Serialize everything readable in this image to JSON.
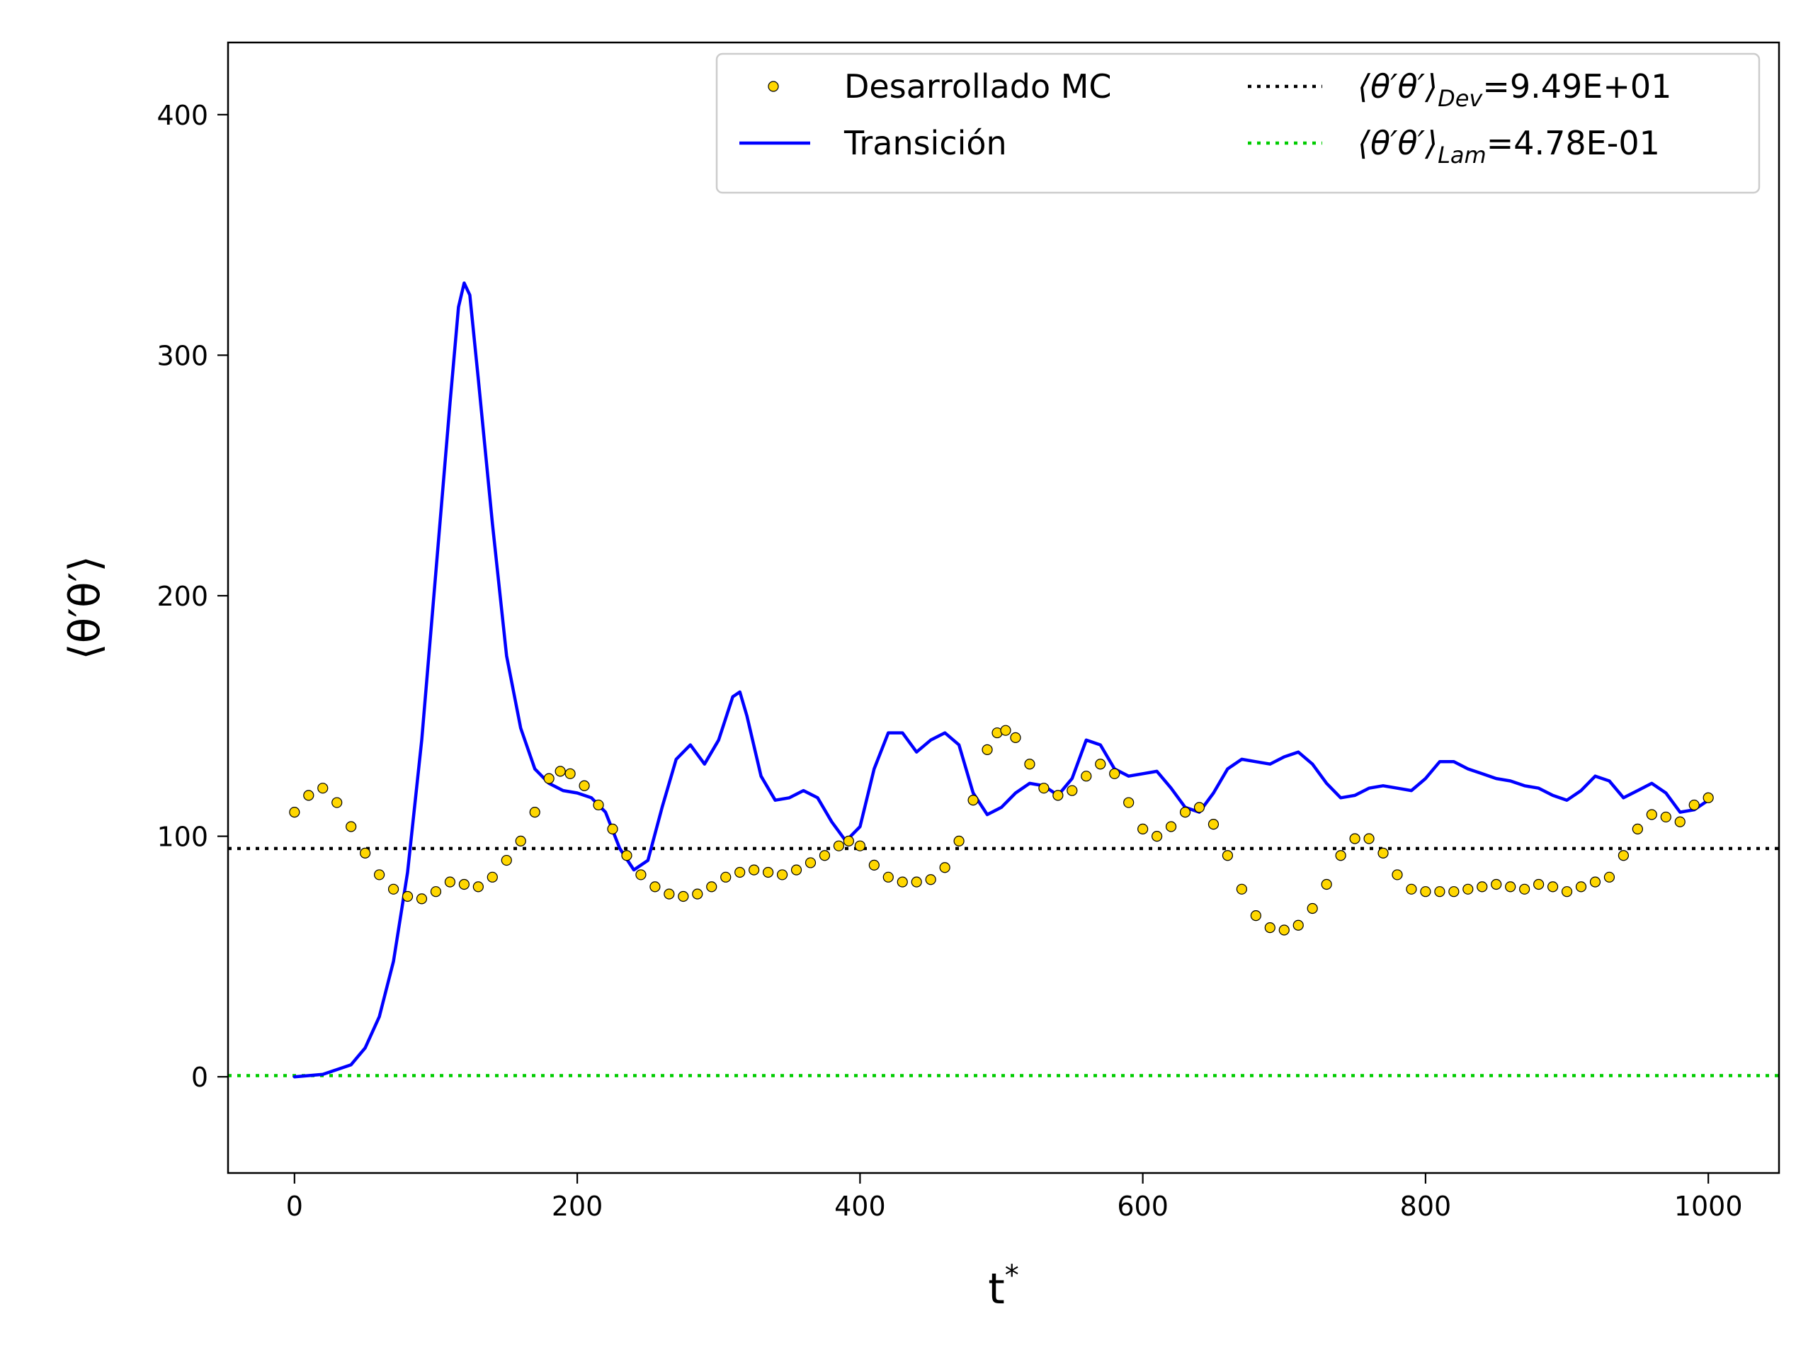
{
  "chart_data": {
    "type": "line",
    "title": "",
    "xlabel": "t*",
    "ylabel": "⟨θ′θ′⟩",
    "xlim": [
      -47,
      1050
    ],
    "ylim": [
      -40,
      430
    ],
    "xticks": [
      0,
      200,
      400,
      600,
      800,
      1000
    ],
    "yticks": [
      0,
      100,
      200,
      300,
      400
    ],
    "grid": false,
    "legend": {
      "placement": "top-right",
      "columns": 2
    },
    "series": [
      {
        "name": "Desarrollado MC",
        "kind": "scatter",
        "color": "#ffd700",
        "edge_color": "#000000",
        "points": [
          [
            0,
            110
          ],
          [
            10,
            117
          ],
          [
            20,
            120
          ],
          [
            30,
            114
          ],
          [
            40,
            104
          ],
          [
            50,
            93
          ],
          [
            60,
            84
          ],
          [
            70,
            78
          ],
          [
            80,
            75
          ],
          [
            90,
            74
          ],
          [
            100,
            77
          ],
          [
            110,
            81
          ],
          [
            120,
            80
          ],
          [
            130,
            79
          ],
          [
            140,
            83
          ],
          [
            150,
            90
          ],
          [
            160,
            98
          ],
          [
            170,
            110
          ],
          [
            180,
            124
          ],
          [
            188,
            127
          ],
          [
            195,
            126
          ],
          [
            205,
            121
          ],
          [
            215,
            113
          ],
          [
            225,
            103
          ],
          [
            235,
            92
          ],
          [
            245,
            84
          ],
          [
            255,
            79
          ],
          [
            265,
            76
          ],
          [
            275,
            75
          ],
          [
            285,
            76
          ],
          [
            295,
            79
          ],
          [
            305,
            83
          ],
          [
            315,
            85
          ],
          [
            325,
            86
          ],
          [
            335,
            85
          ],
          [
            345,
            84
          ],
          [
            355,
            86
          ],
          [
            365,
            89
          ],
          [
            375,
            92
          ],
          [
            385,
            96
          ],
          [
            392,
            98
          ],
          [
            400,
            96
          ],
          [
            410,
            88
          ],
          [
            420,
            83
          ],
          [
            430,
            81
          ],
          [
            440,
            81
          ],
          [
            450,
            82
          ],
          [
            460,
            87
          ],
          [
            470,
            98
          ],
          [
            480,
            115
          ],
          [
            490,
            136
          ],
          [
            497,
            143
          ],
          [
            503,
            144
          ],
          [
            510,
            141
          ],
          [
            520,
            130
          ],
          [
            530,
            120
          ],
          [
            540,
            117
          ],
          [
            550,
            119
          ],
          [
            560,
            125
          ],
          [
            570,
            130
          ],
          [
            580,
            126
          ],
          [
            590,
            114
          ],
          [
            600,
            103
          ],
          [
            610,
            100
          ],
          [
            620,
            104
          ],
          [
            630,
            110
          ],
          [
            640,
            112
          ],
          [
            650,
            105
          ],
          [
            660,
            92
          ],
          [
            670,
            78
          ],
          [
            680,
            67
          ],
          [
            690,
            62
          ],
          [
            700,
            61
          ],
          [
            710,
            63
          ],
          [
            720,
            70
          ],
          [
            730,
            80
          ],
          [
            740,
            92
          ],
          [
            750,
            99
          ],
          [
            760,
            99
          ],
          [
            770,
            93
          ],
          [
            780,
            84
          ],
          [
            790,
            78
          ],
          [
            800,
            77
          ],
          [
            810,
            77
          ],
          [
            820,
            77
          ],
          [
            830,
            78
          ],
          [
            840,
            79
          ],
          [
            850,
            80
          ],
          [
            860,
            79
          ],
          [
            870,
            78
          ],
          [
            880,
            80
          ],
          [
            890,
            79
          ],
          [
            900,
            77
          ],
          [
            910,
            79
          ],
          [
            920,
            81
          ],
          [
            930,
            83
          ],
          [
            940,
            92
          ],
          [
            950,
            103
          ],
          [
            960,
            109
          ],
          [
            970,
            108
          ],
          [
            980,
            106
          ],
          [
            990,
            113
          ],
          [
            1000,
            116
          ]
        ]
      },
      {
        "name": "Transición",
        "kind": "line",
        "color": "#0000ff",
        "points": [
          [
            0,
            0
          ],
          [
            20,
            1
          ],
          [
            40,
            5
          ],
          [
            50,
            12
          ],
          [
            60,
            25
          ],
          [
            70,
            48
          ],
          [
            80,
            85
          ],
          [
            90,
            140
          ],
          [
            100,
            210
          ],
          [
            110,
            280
          ],
          [
            116,
            320
          ],
          [
            120,
            330
          ],
          [
            124,
            325
          ],
          [
            130,
            290
          ],
          [
            140,
            230
          ],
          [
            150,
            175
          ],
          [
            160,
            145
          ],
          [
            170,
            128
          ],
          [
            180,
            122
          ],
          [
            190,
            119
          ],
          [
            200,
            118
          ],
          [
            210,
            116
          ],
          [
            220,
            110
          ],
          [
            230,
            95
          ],
          [
            240,
            86
          ],
          [
            250,
            90
          ],
          [
            260,
            112
          ],
          [
            270,
            132
          ],
          [
            280,
            138
          ],
          [
            290,
            130
          ],
          [
            300,
            140
          ],
          [
            310,
            158
          ],
          [
            315,
            160
          ],
          [
            320,
            150
          ],
          [
            330,
            125
          ],
          [
            340,
            115
          ],
          [
            350,
            116
          ],
          [
            360,
            119
          ],
          [
            370,
            116
          ],
          [
            380,
            106
          ],
          [
            390,
            98
          ],
          [
            400,
            104
          ],
          [
            410,
            128
          ],
          [
            420,
            143
          ],
          [
            430,
            143
          ],
          [
            440,
            135
          ],
          [
            450,
            140
          ],
          [
            460,
            143
          ],
          [
            470,
            138
          ],
          [
            480,
            118
          ],
          [
            490,
            109
          ],
          [
            500,
            112
          ],
          [
            510,
            118
          ],
          [
            520,
            122
          ],
          [
            530,
            121
          ],
          [
            540,
            117
          ],
          [
            550,
            124
          ],
          [
            560,
            140
          ],
          [
            570,
            138
          ],
          [
            580,
            128
          ],
          [
            590,
            125
          ],
          [
            600,
            126
          ],
          [
            610,
            127
          ],
          [
            620,
            120
          ],
          [
            630,
            112
          ],
          [
            640,
            110
          ],
          [
            650,
            118
          ],
          [
            660,
            128
          ],
          [
            670,
            132
          ],
          [
            680,
            131
          ],
          [
            690,
            130
          ],
          [
            700,
            133
          ],
          [
            710,
            135
          ],
          [
            720,
            130
          ],
          [
            730,
            122
          ],
          [
            740,
            116
          ],
          [
            750,
            117
          ],
          [
            760,
            120
          ],
          [
            770,
            121
          ],
          [
            780,
            120
          ],
          [
            790,
            119
          ],
          [
            800,
            124
          ],
          [
            810,
            131
          ],
          [
            820,
            131
          ],
          [
            830,
            128
          ],
          [
            840,
            126
          ],
          [
            850,
            124
          ],
          [
            860,
            123
          ],
          [
            870,
            121
          ],
          [
            880,
            120
          ],
          [
            890,
            117
          ],
          [
            900,
            115
          ],
          [
            910,
            119
          ],
          [
            920,
            125
          ],
          [
            930,
            123
          ],
          [
            940,
            116
          ],
          [
            950,
            119
          ],
          [
            960,
            122
          ],
          [
            970,
            118
          ],
          [
            980,
            110
          ],
          [
            990,
            111
          ],
          [
            1000,
            115
          ]
        ]
      },
      {
        "name": "⟨θ′θ′⟩Dev=9.49E+01",
        "name_main": "⟨θ′θ′⟩",
        "name_sub": "Dev",
        "name_value": "=9.49E+01",
        "kind": "hline",
        "y": 94.9,
        "color": "#000000"
      },
      {
        "name": "⟨θ′θ′⟩Lam=4.78E-01",
        "name_main": "⟨θ′θ′⟩",
        "name_sub": "Lam",
        "name_value": "=4.78E-01",
        "kind": "hline",
        "y": 0.478,
        "color": "#00cc00"
      }
    ]
  }
}
